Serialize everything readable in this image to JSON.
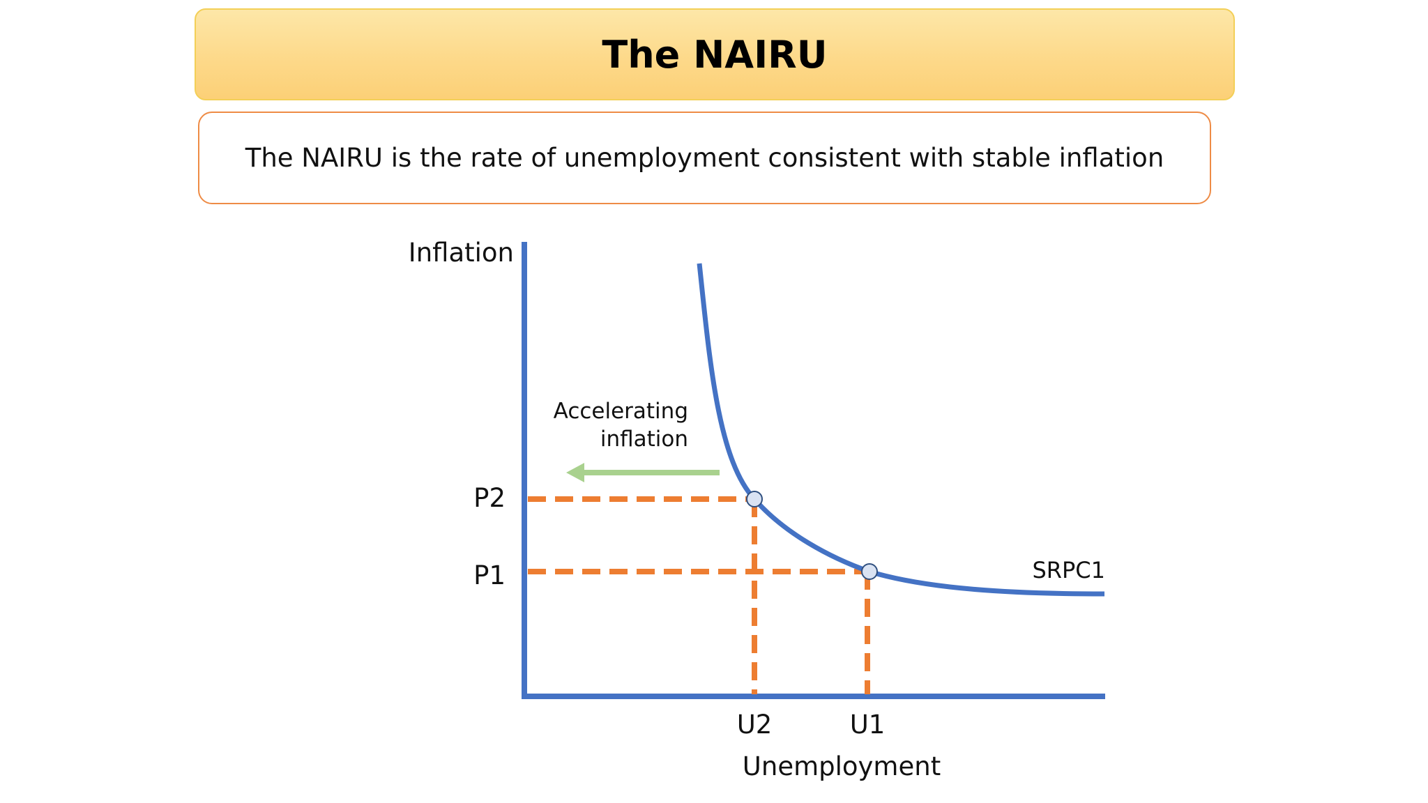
{
  "title": "The NAIRU",
  "definition": "The NAIRU is the rate of unemployment consistent with stable inflation",
  "diagram": {
    "y_axis_label": "Inflation",
    "x_axis_label": "Unemployment",
    "curve_label": "SRPC1",
    "annotation_line1": "Accelerating",
    "annotation_line2": "inflation",
    "ticks": {
      "p1": "P1",
      "p2": "P2",
      "u1": "U1",
      "u2": "U2"
    },
    "colors": {
      "axis": "#4472c4",
      "curve": "#4472c4",
      "guides": "#ed7d31",
      "arrow": "#a9d18e",
      "point_fill": "#dae3f3"
    },
    "icons": {
      "arrow": "left-arrow-icon"
    }
  }
}
